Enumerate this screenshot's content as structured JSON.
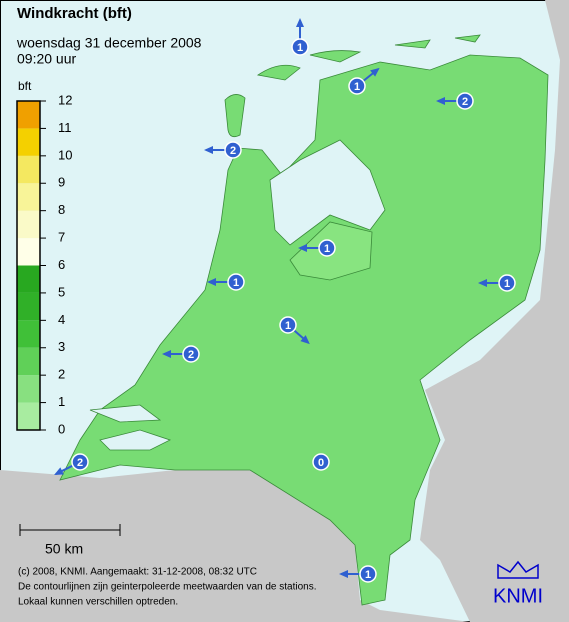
{
  "header": {
    "title": "Windkracht (bft)",
    "date": "woensdag 31 december 2008",
    "time": "09:20 uur"
  },
  "legend": {
    "unit": "bft",
    "ticks": [
      0,
      1,
      2,
      3,
      4,
      5,
      6,
      7,
      8,
      9,
      10,
      11,
      12
    ],
    "colors": [
      "#a8eca0",
      "#88e080",
      "#60d058",
      "#40c038",
      "#30b028",
      "#28a820",
      "#ffffe8",
      "#fafac8",
      "#f8f498",
      "#f4e860",
      "#f4d000",
      "#f0a000",
      "#e03000"
    ]
  },
  "stations": [
    1,
    1,
    2,
    2,
    1,
    1,
    1,
    1,
    2,
    2,
    0,
    1
  ],
  "scale": "50 km",
  "footer": [
    "(c) 2008, KNMI. Aangemaakt: 31-12-2008, 08:32 UTC",
    "De contourlijnen zijn geinterpoleerde meetwaarden van de stations.",
    "Lokaal kunnen verschillen optreden."
  ],
  "logo": "KNMI"
}
